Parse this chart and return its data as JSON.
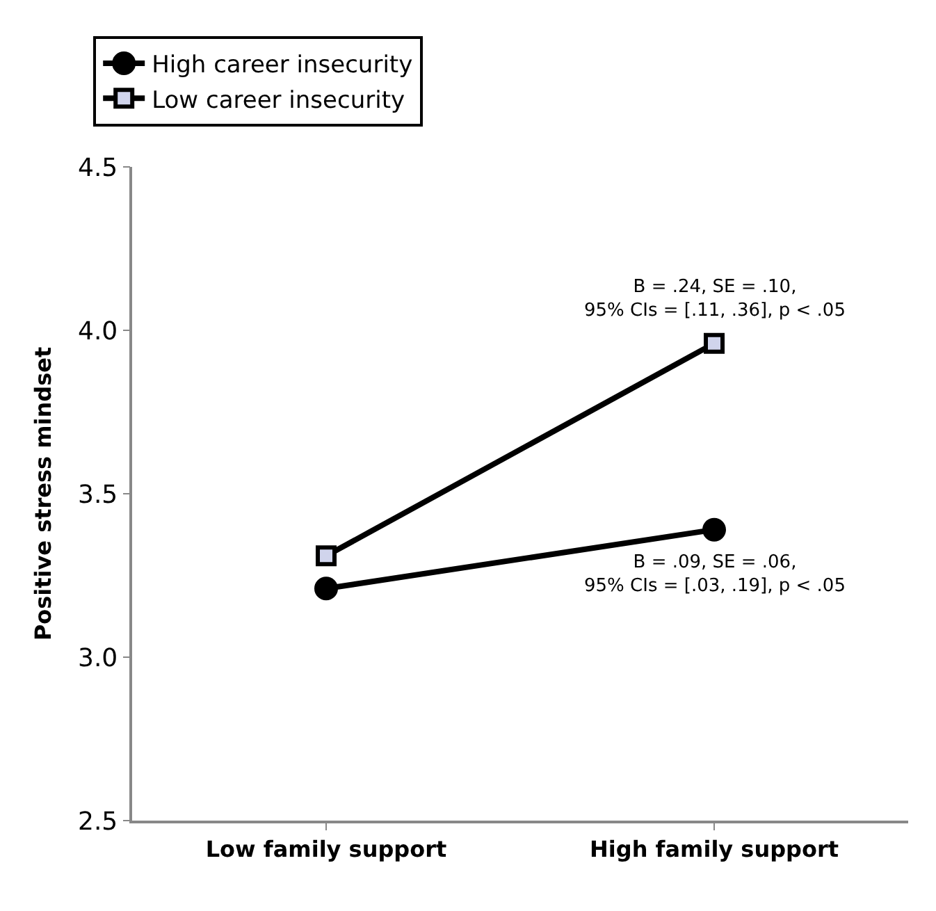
{
  "chart_data": {
    "type": "line",
    "ylabel": "Positive stress mindset",
    "categories": [
      "Low family support",
      "High family support"
    ],
    "series": [
      {
        "name": "High career insecurity",
        "color": "#000000",
        "marker": "circle",
        "values": [
          3.21,
          3.39
        ]
      },
      {
        "name": "Low career insecurity",
        "color": "#000000",
        "marker": "square",
        "values": [
          3.31,
          3.96
        ]
      }
    ],
    "ylim": [
      2.5,
      4.5
    ],
    "yticks": [
      {
        "value": 2.5,
        "label": "2.5"
      },
      {
        "value": 3.0,
        "label": "3.0"
      },
      {
        "value": 3.5,
        "label": "3.5"
      },
      {
        "value": 4.0,
        "label": "4.0"
      },
      {
        "value": 4.5,
        "label": "4.5"
      }
    ],
    "legend": "top left",
    "line_style": "solid",
    "annotations": [
      {
        "text": "B = .24, SE = .10,\n95% CIs = [.11, .36], p < .05",
        "x": "High family support",
        "y": 3.96
      },
      {
        "text": "B = .09, SE = .06,\n95% CIs = [.03, .19], p < .05",
        "x": "High family support",
        "y": 3.39
      }
    ]
  }
}
